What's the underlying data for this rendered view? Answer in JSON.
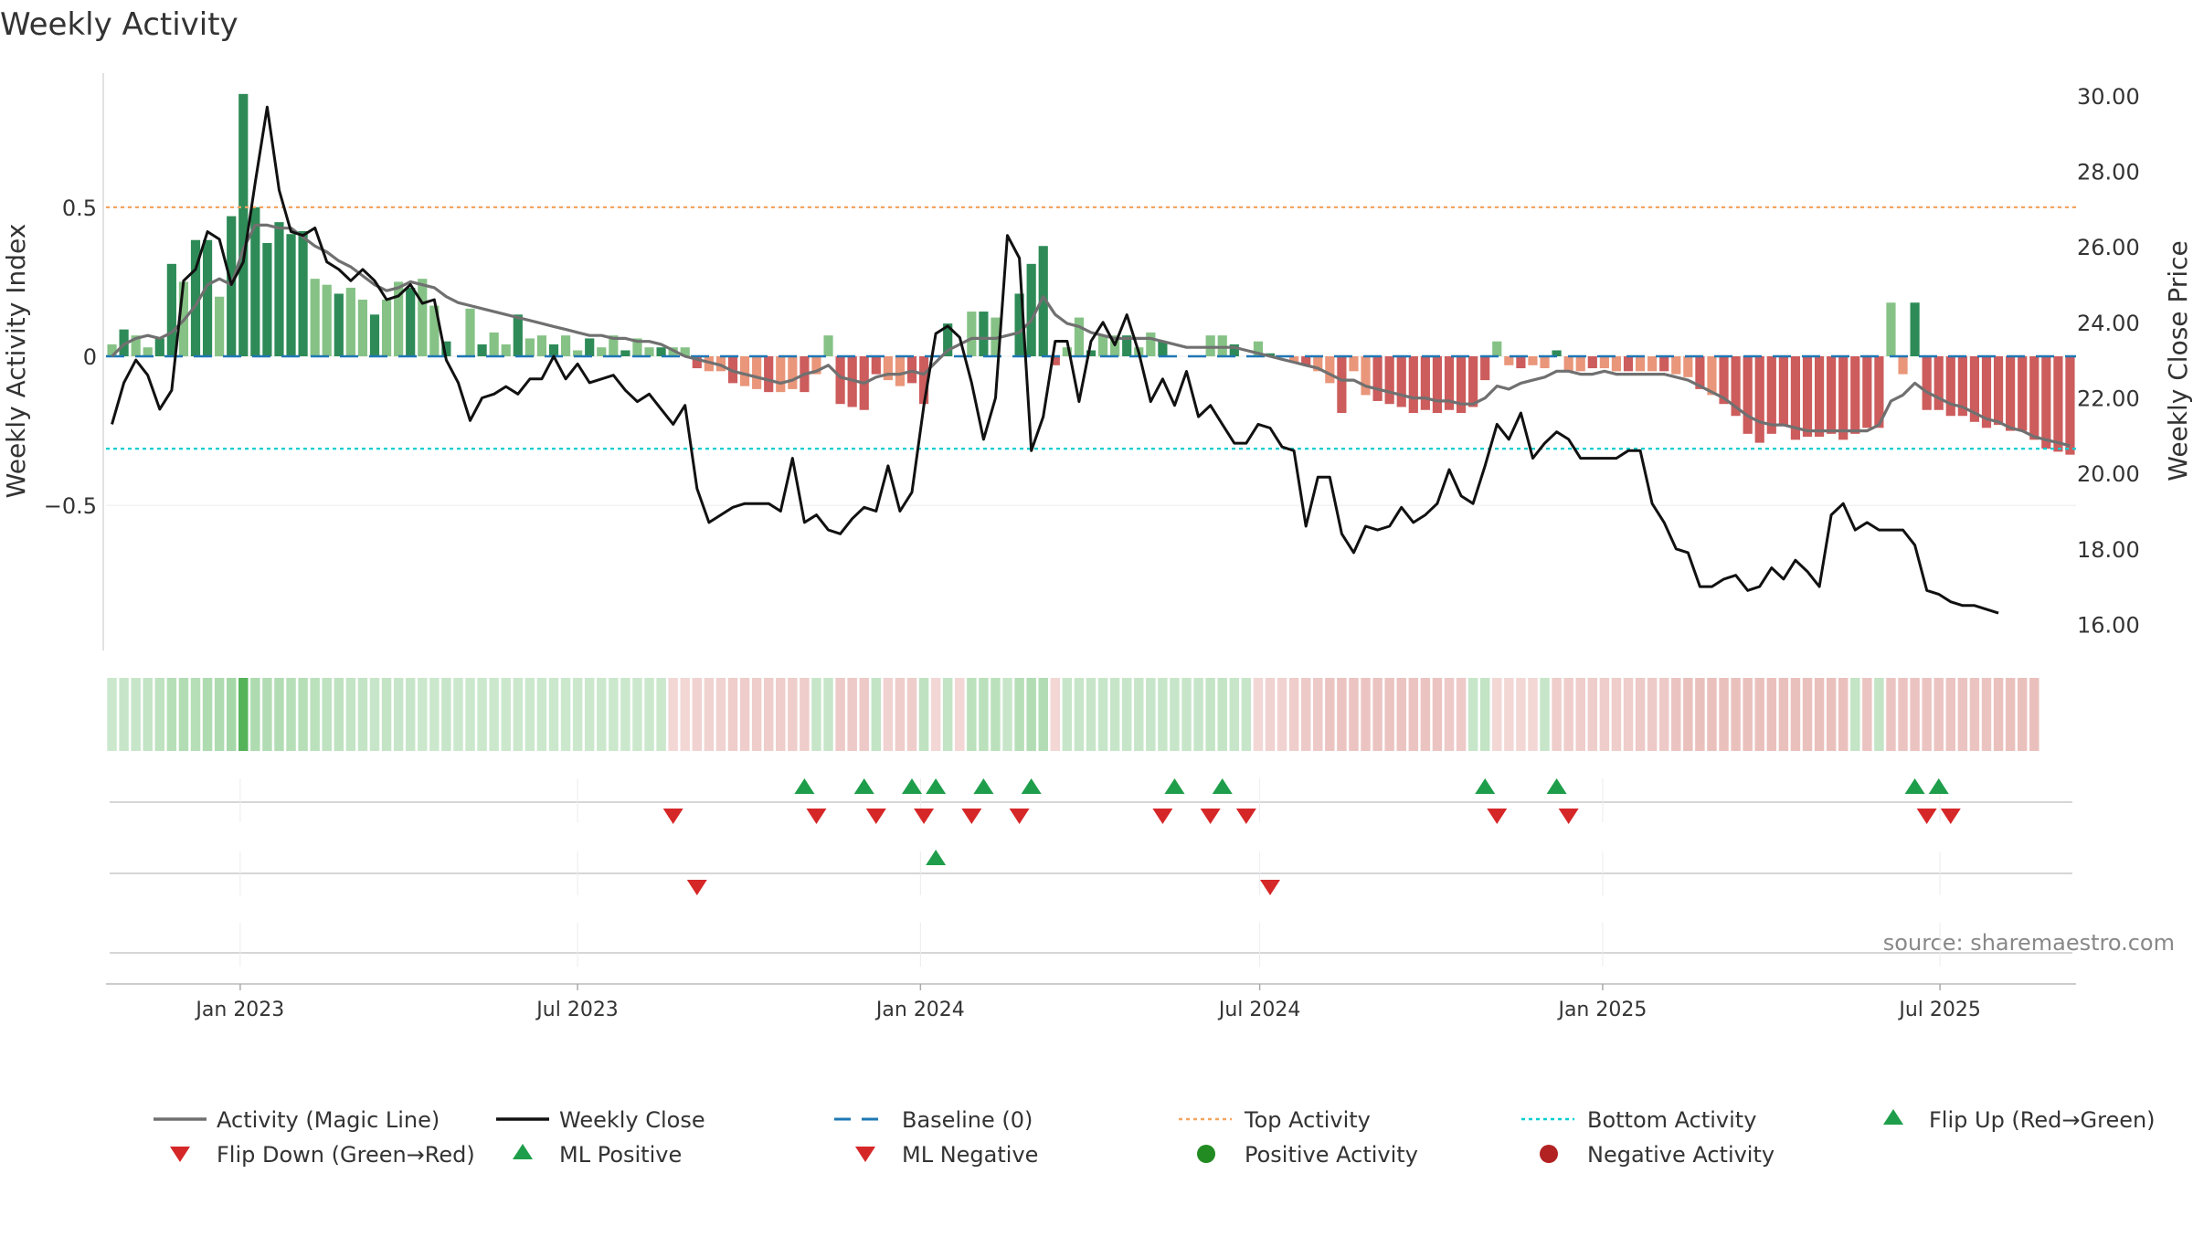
{
  "chart_data": {
    "type": "bar",
    "title": "Weekly Activity",
    "ylabel_left": "Weekly Activity Index",
    "ylabel_right": "Weekly Close Price",
    "source": "source: sharemaestro.com",
    "left_axis": {
      "ylim": [
        -0.95,
        0.95
      ],
      "ticks": [
        0.5,
        0,
        -0.5
      ],
      "tick_labels": [
        "0.5",
        "0",
        "−0.5"
      ]
    },
    "right_axis": {
      "ylim": [
        15.6,
        30.6
      ],
      "ticks": [
        30,
        28,
        26,
        24,
        22,
        20,
        18,
        16
      ],
      "tick_labels": [
        "30.00",
        "28.00",
        "26.00",
        "24.00",
        "22.00",
        "20.00",
        "18.00",
        "16.00"
      ]
    },
    "x_axis": {
      "start": "2022-10-21",
      "end": "2025-09-12",
      "ticks": [
        {
          "date": "2023-01-01",
          "label": "Jan 2023"
        },
        {
          "date": "2023-07-01",
          "label": "Jul 2023"
        },
        {
          "date": "2024-01-01",
          "label": "Jan 2024"
        },
        {
          "date": "2024-07-01",
          "label": "Jul 2024"
        },
        {
          "date": "2025-01-01",
          "label": "Jan 2025"
        },
        {
          "date": "2025-07-01",
          "label": "Jul 2025"
        }
      ]
    },
    "reference_lines": {
      "top_activity": 0.5,
      "bottom_activity": -0.31,
      "baseline": 0
    },
    "colors": {
      "pos_dark": "#2e8b57",
      "pos_light": "#86c286",
      "neg_dark": "#cd5c5c",
      "neg_light": "#e9967a",
      "magic_line": "#707070",
      "weekly_close": "#111111",
      "baseline": "#1f77b4",
      "top": "#f4a460",
      "bottom": "#00ced1",
      "flip_up": "#1e9e4a",
      "flip_down": "#d62728",
      "pos_dot": "#228b22",
      "neg_dot": "#b22222"
    },
    "series": {
      "activity": [
        0.04,
        0.09,
        0.07,
        0.03,
        0.06,
        0.31,
        0.25,
        0.39,
        0.39,
        0.2,
        0.47,
        0.88,
        0.5,
        0.38,
        0.45,
        0.41,
        0.42,
        0.26,
        0.24,
        0.21,
        0.23,
        0.19,
        0.14,
        0.19,
        0.25,
        0.23,
        0.26,
        0.17,
        0.05,
        0,
        0.16,
        0.04,
        0.08,
        0.04,
        0.14,
        0.06,
        0.07,
        0.04,
        0.07,
        0.02,
        0.06,
        0.03,
        0.07,
        0.02,
        0.06,
        0.03,
        0.03,
        0.03,
        0.03,
        -0.04,
        -0.05,
        -0.05,
        -0.09,
        -0.1,
        -0.11,
        -0.12,
        -0.12,
        -0.11,
        -0.12,
        -0.06,
        0.07,
        -0.16,
        -0.17,
        -0.18,
        -0.06,
        -0.08,
        -0.1,
        -0.09,
        -0.16,
        0,
        0.11,
        0,
        0.15,
        0.15,
        0.13,
        0,
        0.21,
        0.31,
        0.37,
        -0.03,
        0.03,
        0.13,
        0.02,
        0.07,
        0.07,
        0.07,
        0.03,
        0.08,
        0.05,
        0,
        0,
        0,
        0.07,
        0.07,
        0.04,
        0,
        0.05,
        0.01,
        0,
        -0.02,
        -0.03,
        -0.05,
        -0.09,
        -0.19,
        -0.05,
        -0.13,
        -0.15,
        -0.16,
        -0.17,
        -0.19,
        -0.18,
        -0.19,
        -0.18,
        -0.19,
        -0.17,
        -0.08,
        0.05,
        -0.03,
        -0.04,
        -0.03,
        -0.04,
        0.02,
        -0.05,
        -0.05,
        -0.04,
        -0.04,
        -0.05,
        -0.05,
        -0.05,
        -0.05,
        -0.05,
        -0.06,
        -0.07,
        -0.11,
        -0.13,
        -0.16,
        -0.2,
        -0.26,
        -0.29,
        -0.26,
        -0.23,
        -0.28,
        -0.27,
        -0.27,
        -0.26,
        -0.28,
        -0.26,
        -0.24,
        -0.24,
        0.18,
        -0.06,
        0.18,
        -0.18,
        -0.18,
        -0.2,
        -0.2,
        -0.22,
        -0.24,
        -0.23,
        -0.25,
        -0.25,
        -0.28,
        -0.31,
        -0.32,
        -0.33
      ],
      "magic_line": [
        0,
        0.04,
        0.06,
        0.07,
        0.06,
        0.08,
        0.12,
        0.17,
        0.24,
        0.26,
        0.24,
        0.36,
        0.44,
        0.44,
        0.43,
        0.43,
        0.4,
        0.37,
        0.35,
        0.32,
        0.3,
        0.27,
        0.24,
        0.22,
        0.23,
        0.25,
        0.24,
        0.23,
        0.2,
        0.18,
        0.17,
        0.16,
        0.15,
        0.14,
        0.13,
        0.12,
        0.11,
        0.1,
        0.09,
        0.08,
        0.07,
        0.07,
        0.06,
        0.06,
        0.05,
        0.05,
        0.04,
        0.02,
        0,
        -0.01,
        -0.02,
        -0.03,
        -0.05,
        -0.06,
        -0.07,
        -0.08,
        -0.09,
        -0.08,
        -0.06,
        -0.05,
        -0.03,
        -0.07,
        -0.08,
        -0.09,
        -0.07,
        -0.06,
        -0.06,
        -0.05,
        -0.06,
        -0.02,
        0.02,
        0.04,
        0.06,
        0.06,
        0.06,
        0.07,
        0.08,
        0.12,
        0.2,
        0.14,
        0.11,
        0.1,
        0.08,
        0.07,
        0.06,
        0.06,
        0.06,
        0.06,
        0.05,
        0.04,
        0.03,
        0.03,
        0.03,
        0.03,
        0.03,
        0.02,
        0.01,
        0,
        -0.01,
        -0.02,
        -0.03,
        -0.04,
        -0.06,
        -0.08,
        -0.08,
        -0.1,
        -0.11,
        -0.12,
        -0.13,
        -0.14,
        -0.14,
        -0.15,
        -0.15,
        -0.16,
        -0.16,
        -0.14,
        -0.1,
        -0.11,
        -0.09,
        -0.08,
        -0.07,
        -0.05,
        -0.05,
        -0.06,
        -0.06,
        -0.05,
        -0.06,
        -0.06,
        -0.06,
        -0.06,
        -0.06,
        -0.07,
        -0.08,
        -0.1,
        -0.12,
        -0.14,
        -0.17,
        -0.2,
        -0.22,
        -0.23,
        -0.23,
        -0.24,
        -0.25,
        -0.25,
        -0.25,
        -0.25,
        -0.25,
        -0.25,
        -0.23,
        -0.15,
        -0.13,
        -0.09,
        -0.12,
        -0.14,
        -0.16,
        -0.17,
        -0.19,
        -0.21,
        -0.22,
        -0.24,
        -0.25,
        -0.27,
        -0.28,
        -0.29,
        -0.3
      ],
      "weekly_close": [
        21.3,
        22.4,
        23,
        22.6,
        21.7,
        22.2,
        25.1,
        25.4,
        26.4,
        26.2,
        25,
        25.6,
        27.7,
        29.7,
        27.5,
        26.4,
        26.3,
        26.5,
        25.6,
        25.4,
        25.1,
        25.4,
        25.1,
        24.6,
        24.7,
        25,
        24.5,
        24.6,
        23,
        22.4,
        21.4,
        22,
        22.1,
        22.3,
        22.1,
        22.5,
        22.5,
        23.1,
        22.5,
        22.9,
        22.4,
        22.5,
        22.6,
        22.2,
        21.9,
        22.1,
        21.7,
        21.3,
        21.8,
        19.6,
        18.7,
        18.9,
        19.1,
        19.2,
        19.2,
        19.2,
        19,
        20.4,
        18.7,
        18.9,
        18.5,
        18.4,
        18.8,
        19.1,
        19,
        20.2,
        19,
        19.5,
        21.8,
        23.7,
        23.9,
        23.6,
        22.4,
        20.9,
        22,
        26.3,
        25.7,
        20.6,
        21.5,
        23.5,
        23.5,
        21.9,
        23.5,
        24,
        23.4,
        24.2,
        23.2,
        21.9,
        22.5,
        21.8,
        22.7,
        21.5,
        21.8,
        21.3,
        20.8,
        20.8,
        21.3,
        21.2,
        20.7,
        20.6,
        18.6,
        19.9,
        19.9,
        18.4,
        17.9,
        18.6,
        18.5,
        18.6,
        19.1,
        18.7,
        18.9,
        19.2,
        20.1,
        19.4,
        19.2,
        20.2,
        21.3,
        20.9,
        21.6,
        20.4,
        20.8,
        21.1,
        20.9,
        20.4,
        20.4,
        20.4,
        20.4,
        20.6,
        20.6,
        19.2,
        18.7,
        18,
        17.9,
        17,
        17,
        17.2,
        17.3,
        16.9,
        17,
        17.5,
        17.2,
        17.7,
        17.4,
        17,
        18.9,
        19.2,
        18.5,
        18.7,
        18.5,
        18.5,
        18.5,
        18.1,
        16.9,
        16.8,
        16.6,
        16.5,
        16.5,
        16.4,
        16.3
      ],
      "heatmap_intensity": [
        0.25,
        0.3,
        0.3,
        0.35,
        0.4,
        0.5,
        0.55,
        0.5,
        0.6,
        0.6,
        0.7,
        1,
        0.6,
        0.55,
        0.55,
        0.5,
        0.5,
        0.45,
        0.4,
        0.4,
        0.35,
        0.35,
        0.3,
        0.35,
        0.3,
        0.3,
        0.25,
        0.25,
        0.3,
        0.25,
        0.25,
        0.25,
        0.25,
        0.25,
        0.25,
        0.25,
        0.25,
        0.25,
        0.25,
        0.25,
        0.25,
        0.25,
        0.25,
        0.25,
        0.25,
        0.25,
        0.25,
        -0.3,
        -0.3,
        -0.35,
        -0.35,
        -0.35,
        -0.4,
        -0.4,
        -0.4,
        -0.4,
        -0.4,
        -0.4,
        -0.4,
        0.3,
        0.3,
        -0.45,
        -0.45,
        -0.45,
        0.35,
        -0.35,
        -0.4,
        -0.4,
        0.4,
        -0.3,
        0.35,
        -0.3,
        0.45,
        0.45,
        0.45,
        0.3,
        0.5,
        0.55,
        0.55,
        -0.3,
        0.3,
        0.3,
        0.3,
        0.3,
        0.3,
        0.3,
        0.3,
        0.3,
        0.3,
        0.3,
        0.3,
        0.3,
        0.35,
        0.35,
        0.3,
        0.3,
        -0.3,
        -0.35,
        -0.35,
        -0.4,
        -0.45,
        -0.45,
        -0.5,
        -0.5,
        -0.5,
        -0.5,
        -0.5,
        -0.5,
        -0.5,
        -0.5,
        -0.5,
        -0.5,
        -0.45,
        -0.45,
        0.3,
        0.35,
        -0.3,
        -0.3,
        -0.3,
        -0.3,
        0.3,
        -0.4,
        -0.4,
        -0.4,
        -0.4,
        -0.4,
        -0.4,
        -0.4,
        -0.45,
        -0.45,
        -0.45,
        -0.5,
        -0.55,
        -0.55,
        -0.55,
        -0.55,
        -0.55,
        -0.55,
        -0.55,
        -0.55,
        -0.55,
        -0.55,
        -0.55,
        -0.55,
        -0.55,
        -0.55,
        0.35,
        -0.5,
        0.35,
        -0.5,
        -0.5,
        -0.5,
        -0.5,
        -0.5,
        -0.5,
        -0.5,
        -0.5,
        -0.5,
        -0.55,
        -0.55,
        -0.55,
        -0.55
      ],
      "flip_up_weeks": [
        58,
        63,
        67,
        69,
        73,
        77,
        89,
        93,
        115,
        121,
        151,
        153
      ],
      "flip_down_weeks": [
        47,
        59,
        64,
        68,
        72,
        76,
        88,
        92,
        95,
        116,
        122,
        152,
        154
      ],
      "ml_positive_weeks": [
        69
      ],
      "ml_negative_weeks": [
        49,
        97
      ],
      "positive_activity_weeks": [],
      "negative_activity_weeks": []
    },
    "legend": [
      {
        "key": "magic",
        "label": "Activity (Magic Line)"
      },
      {
        "key": "close",
        "label": "Weekly Close"
      },
      {
        "key": "baseline",
        "label": "Baseline (0)"
      },
      {
        "key": "top",
        "label": "Top Activity"
      },
      {
        "key": "bottom",
        "label": "Bottom Activity"
      },
      {
        "key": "flipup",
        "label": "Flip Up (Red→Green)"
      },
      {
        "key": "flipdown",
        "label": "Flip Down (Green→Red)"
      },
      {
        "key": "mlpos",
        "label": "ML Positive"
      },
      {
        "key": "mlneg",
        "label": "ML Negative"
      },
      {
        "key": "posdot",
        "label": "Positive Activity"
      },
      {
        "key": "negdot",
        "label": "Negative Activity"
      }
    ]
  }
}
